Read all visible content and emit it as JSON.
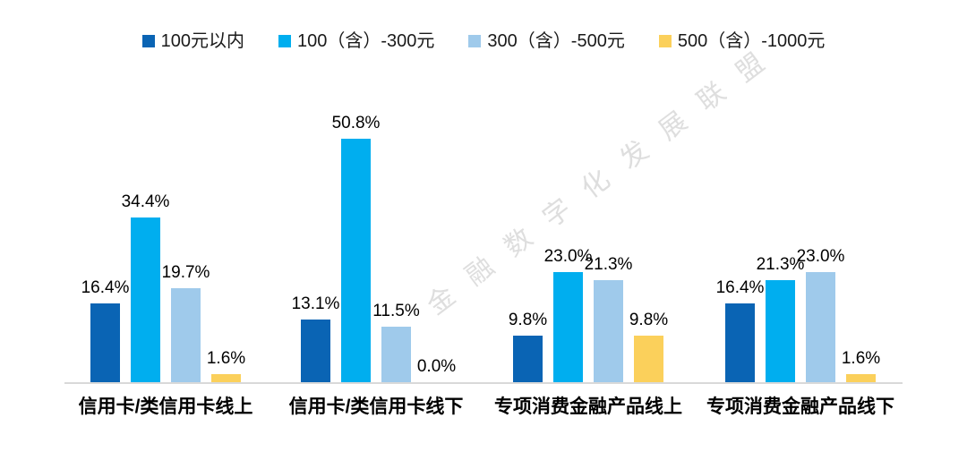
{
  "watermark": {
    "text": "金融数字化发展联盟"
  },
  "chart_data": {
    "type": "bar",
    "title": "",
    "categories": [
      "信用卡/类信用卡线上",
      "信用卡/类信用卡线下",
      "专项消费金融产品线上",
      "专项消费金融产品线下"
    ],
    "series": [
      {
        "name": "100元以内",
        "color": "#0A64B4",
        "values": [
          16.4,
          13.1,
          9.8,
          16.4
        ]
      },
      {
        "name": "100（含）-300元",
        "color": "#00AEEF",
        "values": [
          34.4,
          50.8,
          23.0,
          21.3
        ]
      },
      {
        "name": "300（含）-500元",
        "color": "#9FCAEB",
        "values": [
          19.7,
          11.5,
          21.3,
          23.0
        ]
      },
      {
        "name": "500（含）-1000元",
        "color": "#FBD05B",
        "values": [
          1.6,
          0.0,
          9.8,
          1.6
        ]
      }
    ],
    "value_labels": true,
    "value_label_suffix": "%",
    "value_label_decimals": 1,
    "ylim": [
      0,
      61
    ],
    "legend_position": "top",
    "grid": false,
    "axis_line_color": "#d9d9d9"
  }
}
